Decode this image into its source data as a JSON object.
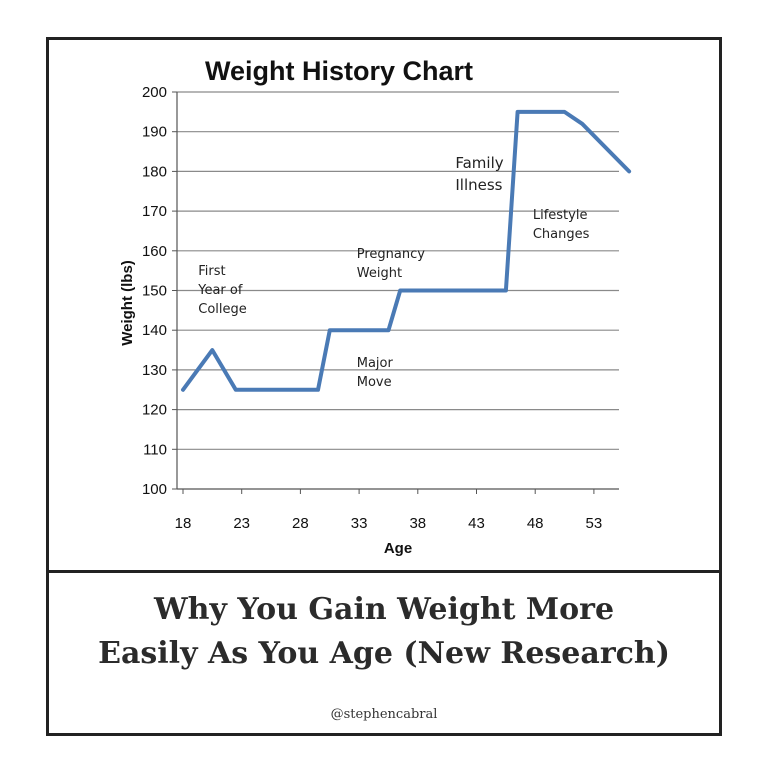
{
  "chart_data": {
    "type": "line",
    "title": "Weight History Chart",
    "xlabel": "Age",
    "ylabel": "Weight (lbs)",
    "x_ticks": [
      18,
      23,
      28,
      33,
      38,
      43,
      48,
      53
    ],
    "y_ticks": [
      100,
      110,
      120,
      130,
      140,
      150,
      160,
      170,
      180,
      190,
      200
    ],
    "xlim": [
      18,
      56
    ],
    "ylim": [
      100,
      200
    ],
    "grid": "horizontal",
    "line_color": "#4a7ab5",
    "series": [
      {
        "x": [
          18,
          20.5,
          22.5,
          29.5,
          30.5,
          35.5,
          36.5,
          45.5,
          46.5,
          50.5,
          52,
          56
        ],
        "y": [
          125,
          135,
          125,
          125,
          140,
          140,
          150,
          150,
          195,
          195,
          192,
          180
        ]
      }
    ],
    "annotations": [
      {
        "text": "First\nYear of\nCollege",
        "x": 19.3,
        "y": 157.3
      },
      {
        "text": "Major\nMove",
        "x": 32.8,
        "y": 134.0
      },
      {
        "text": "Pregnancy\nWeight",
        "x": 32.8,
        "y": 161.5
      },
      {
        "text": "Family\nIllness",
        "x": 41.2,
        "y": 184.8
      },
      {
        "text": "Lifestyle\nChanges",
        "x": 47.8,
        "y": 171.3
      }
    ]
  },
  "caption": {
    "headline": "Why You Gain Weight More\nEasily As You Age (New Research)",
    "handle": "@stephencabral"
  }
}
